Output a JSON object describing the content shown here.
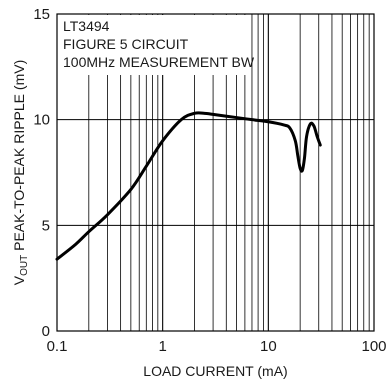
{
  "chart_data": {
    "type": "line",
    "xscale": "log",
    "xlim": [
      0.1,
      100
    ],
    "ylim": [
      0,
      15
    ],
    "grid": true,
    "xlabel": "LOAD CURRENT (mA)",
    "ylabel": {
      "prefix": "V",
      "subscript": "OUT",
      "suffix": " PEAK-TO-PEAK RIPPLE (mV)"
    },
    "annotations": [
      "LT3494",
      "FIGURE 5 CIRCUIT",
      "100MHz MEASUREMENT BW"
    ],
    "x_ticks": [
      {
        "value": 0.1,
        "label": "0.1"
      },
      {
        "value": 1,
        "label": "1"
      },
      {
        "value": 10,
        "label": "10"
      },
      {
        "value": 100,
        "label": "100"
      }
    ],
    "y_ticks": [
      {
        "value": 0,
        "label": "0"
      },
      {
        "value": 5,
        "label": "5"
      },
      {
        "value": 10,
        "label": "10"
      },
      {
        "value": 15,
        "label": "15"
      }
    ],
    "series": [
      {
        "x": [
          0.1,
          0.15,
          0.2,
          0.3,
          0.5,
          0.7,
          1,
          1.5,
          2,
          2.5,
          3,
          5,
          7,
          10,
          14,
          16,
          18,
          19,
          20,
          21,
          22,
          23,
          25,
          27,
          29,
          31
        ],
        "y": [
          3.4,
          4.1,
          4.7,
          5.5,
          6.7,
          7.8,
          9.0,
          10.0,
          10.3,
          10.3,
          10.25,
          10.1,
          10.0,
          9.9,
          9.75,
          9.6,
          9.0,
          8.3,
          7.7,
          7.6,
          8.2,
          9.2,
          9.8,
          9.7,
          9.2,
          8.8
        ],
        "color": "#000000"
      }
    ]
  }
}
